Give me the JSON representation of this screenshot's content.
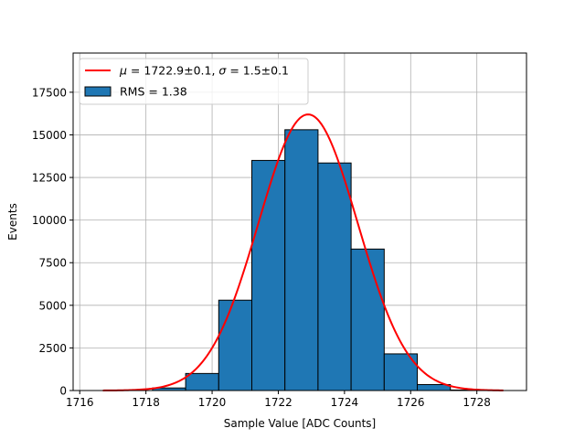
{
  "chart_data": {
    "type": "bar",
    "subtype": "histogram",
    "xlabel": "Sample Value [ADC Counts]",
    "ylabel": "Events",
    "xlim": [
      1715.8,
      1729.5
    ],
    "ylim": [
      0,
      19800
    ],
    "x_ticks": [
      1716,
      1718,
      1720,
      1722,
      1724,
      1726,
      1728
    ],
    "y_ticks": [
      0,
      2500,
      5000,
      7500,
      10000,
      12500,
      15000,
      17500
    ],
    "grid": true,
    "legend_position": "top-left",
    "bar_color": "#1f77b4",
    "bar_edge_color": "#000000",
    "fit_color": "#ff0000",
    "bins": [
      {
        "left": 1718.2,
        "right": 1719.2,
        "value": 150
      },
      {
        "left": 1719.2,
        "right": 1720.2,
        "value": 1000
      },
      {
        "left": 1720.2,
        "right": 1721.2,
        "value": 5300
      },
      {
        "left": 1721.2,
        "right": 1722.2,
        "value": 13500
      },
      {
        "left": 1722.2,
        "right": 1723.2,
        "value": 15300
      },
      {
        "left": 1723.2,
        "right": 1724.2,
        "value": 13350
      },
      {
        "left": 1724.2,
        "right": 1725.2,
        "value": 8300
      },
      {
        "left": 1725.2,
        "right": 1726.2,
        "value": 2150
      },
      {
        "left": 1726.2,
        "right": 1727.2,
        "value": 350
      },
      {
        "left": 1727.2,
        "right": 1728.2,
        "value": 30
      }
    ],
    "fit": {
      "mu": 1722.9,
      "sigma": 1.5,
      "amplitude": 16200,
      "x_range": [
        1716.7,
        1728.8
      ]
    },
    "legend": [
      {
        "kind": "line",
        "prefix_mu": "μ",
        "text_mu": " = 1722.9±0.1, ",
        "prefix_sigma": "σ",
        "text_sigma": " = 1.5±0.1"
      },
      {
        "kind": "patch",
        "text": "RMS = 1.38"
      }
    ]
  }
}
